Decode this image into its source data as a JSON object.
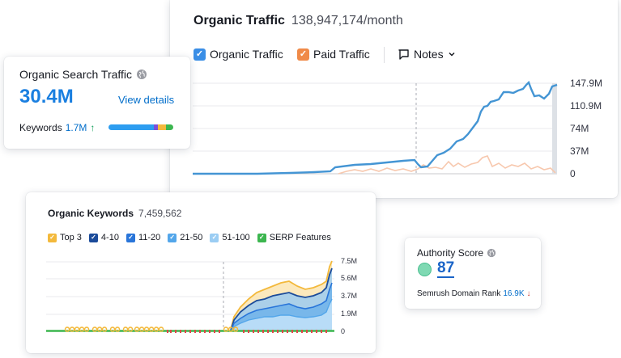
{
  "traffic": {
    "title": "Organic Traffic",
    "value": "138,947,174/month",
    "legend": {
      "organic": "Organic Traffic",
      "paid": "Paid Traffic",
      "notes": "Notes"
    },
    "y_ticks": [
      "147.9M",
      "110.9M",
      "74M",
      "37M",
      "0"
    ],
    "colors": {
      "organic": "#4495d4",
      "paid": "#f7a783"
    }
  },
  "search": {
    "title": "Organic Search Traffic",
    "value": "30.4M",
    "link": "View details",
    "keywords_label": "Keywords",
    "keywords_value": "1.7M",
    "trend": "↑"
  },
  "keywords": {
    "title": "Organic Keywords",
    "value": "7,459,562",
    "legend": [
      {
        "label": "Top 3",
        "color": "#f3b93c"
      },
      {
        "label": "4-10",
        "color": "#1b4b9a"
      },
      {
        "label": "11-20",
        "color": "#2975d9"
      },
      {
        "label": "21-50",
        "color": "#53a6ea"
      },
      {
        "label": "51-100",
        "color": "#9bcdf3"
      },
      {
        "label": "SERP Features",
        "color": "#3cb64f"
      }
    ],
    "y_ticks": [
      "7.5M",
      "5.6M",
      "3.7M",
      "1.9M",
      "0"
    ]
  },
  "authority": {
    "title": "Authority Score",
    "score": "87",
    "rank_label": "Semrush Domain Rank",
    "rank_value": "16.9K",
    "trend": "↓"
  }
}
